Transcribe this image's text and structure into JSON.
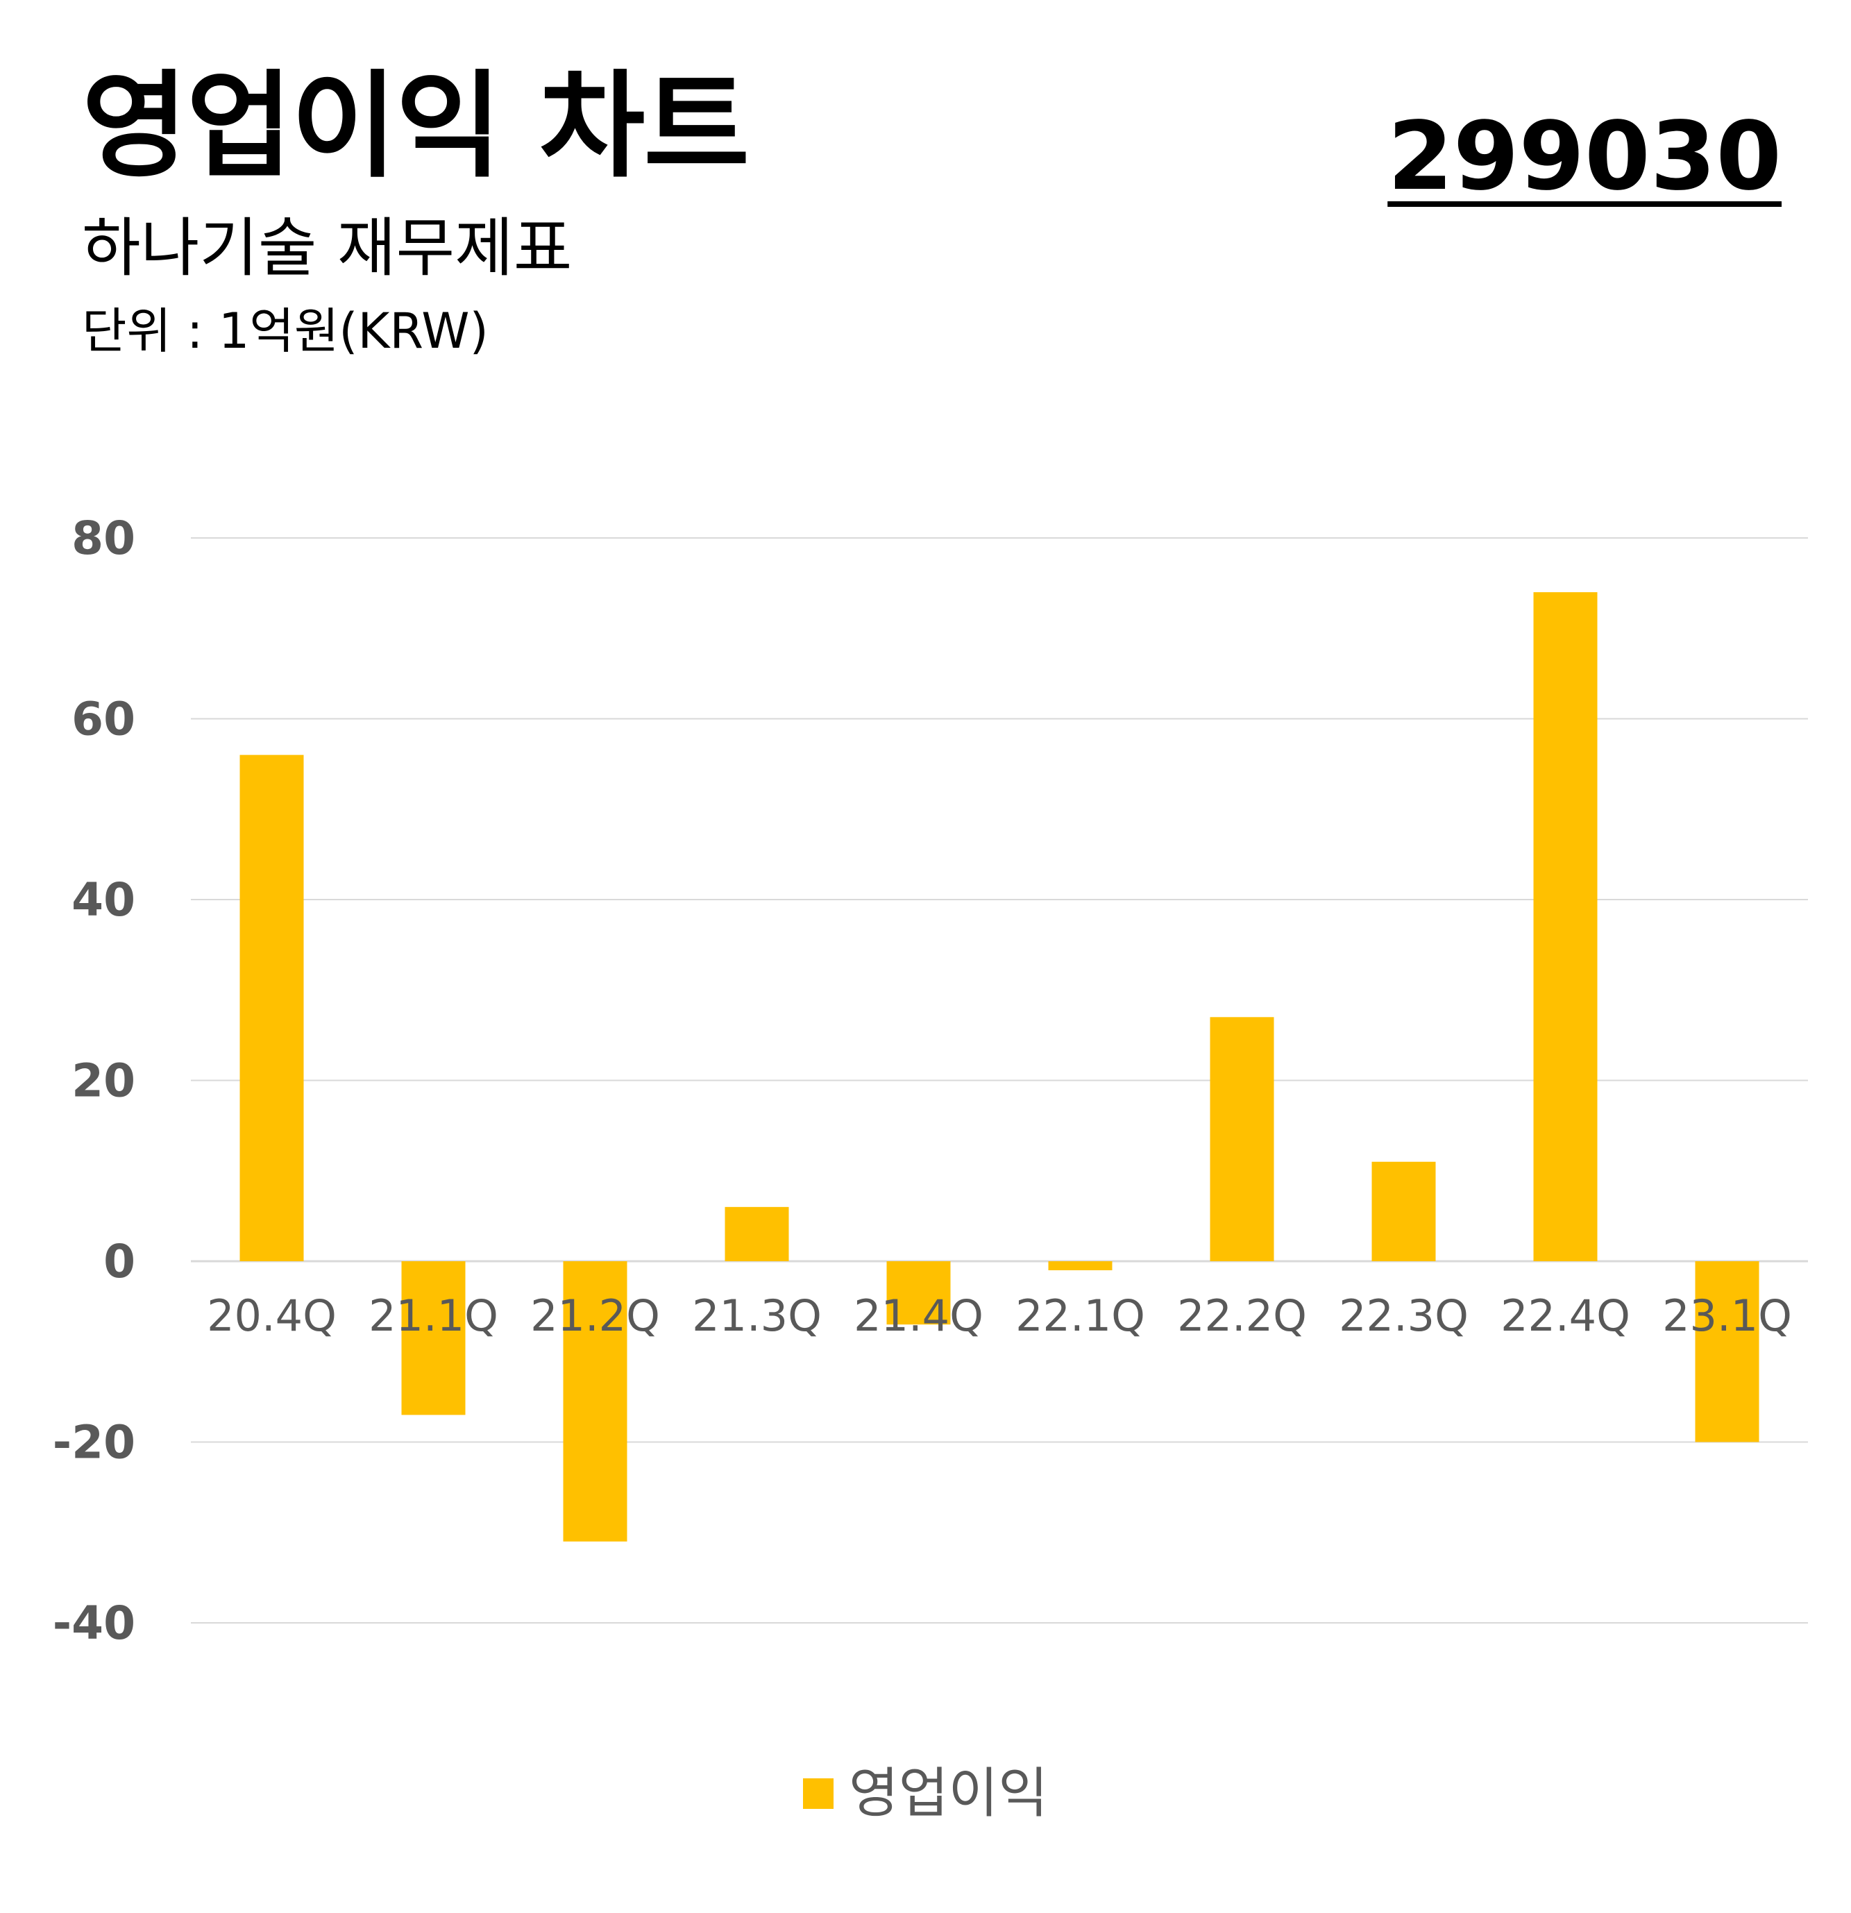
{
  "header": {
    "title": "영업이익 차트",
    "subtitle": "하나기술 재무제표",
    "unit": "단위 : 1억원(KRW)",
    "code": "299030"
  },
  "chart_data": {
    "type": "bar",
    "categories": [
      "20.4Q",
      "21.1Q",
      "21.2Q",
      "21.3Q",
      "21.4Q",
      "22.1Q",
      "22.2Q",
      "22.3Q",
      "22.4Q",
      "23.1Q"
    ],
    "series": [
      {
        "name": "영업이익",
        "values": [
          56,
          -17,
          -31,
          6,
          -7,
          -1,
          27,
          11,
          74,
          -20
        ],
        "color": "#FFC000"
      }
    ],
    "yticks": [
      80,
      60,
      40,
      20,
      0,
      -20,
      -40
    ],
    "ylim": [
      -40,
      80
    ],
    "grid": true,
    "legend_position": "bottom-center",
    "colors": {
      "bar": "#FFC000",
      "grid": "#D9D9D9",
      "tick_text": "#595959"
    }
  }
}
